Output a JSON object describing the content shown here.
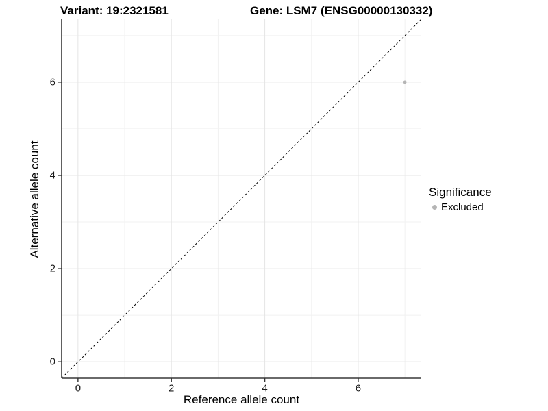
{
  "chart_data": {
    "type": "scatter",
    "title_left": "Variant: 19:2321581",
    "title_right": "Gene: LSM7 (ENSG00000130332)",
    "xlabel": "Reference allele count",
    "ylabel": "Alternative allele count",
    "xlim": [
      -0.35,
      7.35
    ],
    "ylim": [
      -0.35,
      7.35
    ],
    "xticks": [
      0,
      2,
      4,
      6
    ],
    "yticks": [
      0,
      2,
      4,
      6
    ],
    "minor_xticks": [
      1,
      3,
      5,
      7
    ],
    "minor_yticks": [
      1,
      3,
      5,
      7
    ],
    "grid": true,
    "series": [
      {
        "name": "Excluded",
        "color": "#b5b5b5",
        "points": [
          {
            "x": 7,
            "y": 6
          }
        ]
      }
    ],
    "reference_line": {
      "type": "identity",
      "slope": 1,
      "intercept": 0,
      "style": "dashed",
      "color": "#000000"
    },
    "legend": {
      "title": "Significance",
      "position": "right",
      "items": [
        {
          "label": "Excluded",
          "color": "#b5b5b5"
        }
      ]
    },
    "colors": {
      "grid_major": "#e5e5e5",
      "grid_minor": "#f1f1f1",
      "axis_line": "#383838",
      "tick_mark": "#333333",
      "tick_text": "#1a1a1a"
    }
  }
}
